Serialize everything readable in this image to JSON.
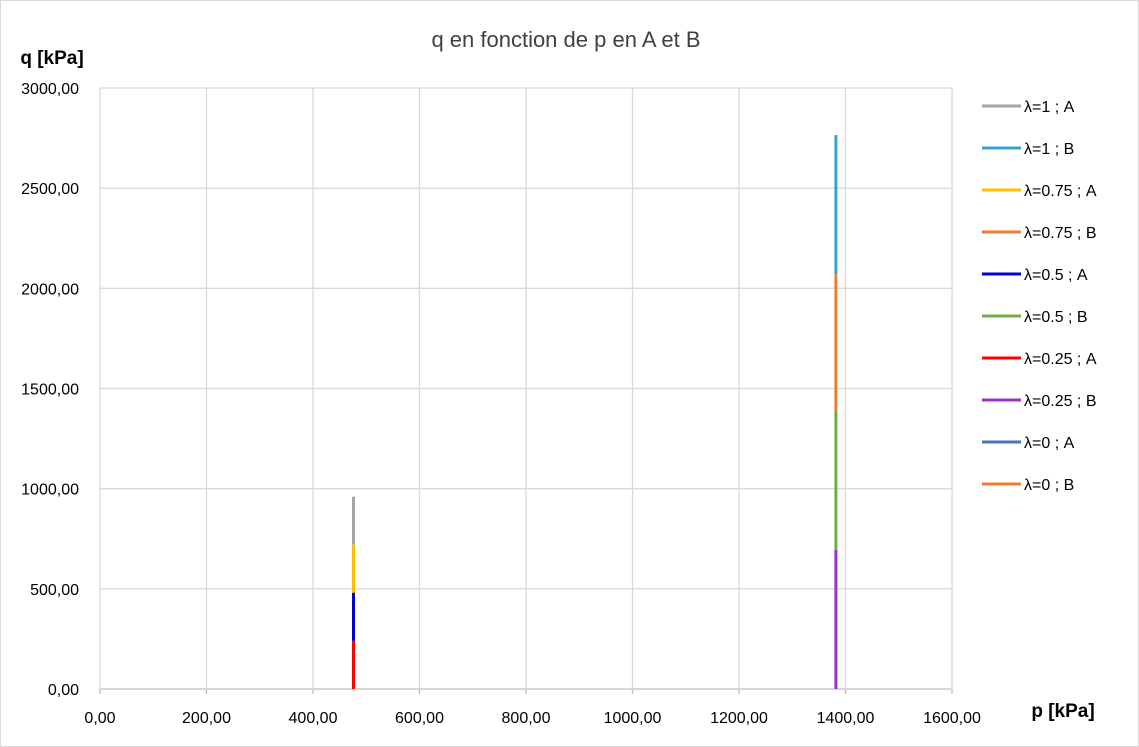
{
  "chart_data": {
    "type": "line",
    "title": "q en fonction de p en A et B",
    "xlabel": "p [kPa]",
    "ylabel": "q [kPa]",
    "xlim": [
      0,
      1600
    ],
    "ylim": [
      0,
      3000
    ],
    "x_ticks": [
      "0,00",
      "200,00",
      "400,00",
      "600,00",
      "800,00",
      "1000,00",
      "1200,00",
      "1400,00",
      "1600,00"
    ],
    "y_ticks": [
      "0,00",
      "500,00",
      "1000,00",
      "1500,00",
      "2000,00",
      "2500,00",
      "3000,00"
    ],
    "grid": true,
    "legend_position": "right",
    "series": [
      {
        "name": "λ=1 ; A",
        "color": "#a5a5a5",
        "x": [
          476,
          476
        ],
        "y": [
          720,
          960
        ]
      },
      {
        "name": "λ=1 ; B",
        "color": "#35a3cf",
        "x": [
          1382,
          1382
        ],
        "y": [
          2070,
          2765
        ]
      },
      {
        "name": "λ=0.75 ; A",
        "color": "#ffc000",
        "x": [
          476,
          476
        ],
        "y": [
          480,
          720
        ]
      },
      {
        "name": "λ=0.75 ; B",
        "color": "#ed7d31",
        "x": [
          1382,
          1382
        ],
        "y": [
          1385,
          2070
        ]
      },
      {
        "name": "λ=0.5 ; A",
        "color": "#0000c8",
        "x": [
          476,
          476
        ],
        "y": [
          240,
          480
        ]
      },
      {
        "name": "λ=0.5 ; B",
        "color": "#70ad47",
        "x": [
          1382,
          1382
        ],
        "y": [
          695,
          1385
        ]
      },
      {
        "name": "λ=0.25 ; A",
        "color": "#ff0000",
        "x": [
          476,
          476
        ],
        "y": [
          0,
          240
        ]
      },
      {
        "name": "λ=0.25 ; B",
        "color": "#9933cc",
        "x": [
          1382,
          1382
        ],
        "y": [
          0,
          695
        ]
      },
      {
        "name": "λ=0 ; A",
        "color": "#4472c4",
        "x": [
          476,
          476
        ],
        "y": [
          0,
          0
        ]
      },
      {
        "name": "λ=0 ; B",
        "color": "#ed7d31",
        "x": [
          1382,
          1382
        ],
        "y": [
          0,
          0
        ]
      }
    ]
  }
}
